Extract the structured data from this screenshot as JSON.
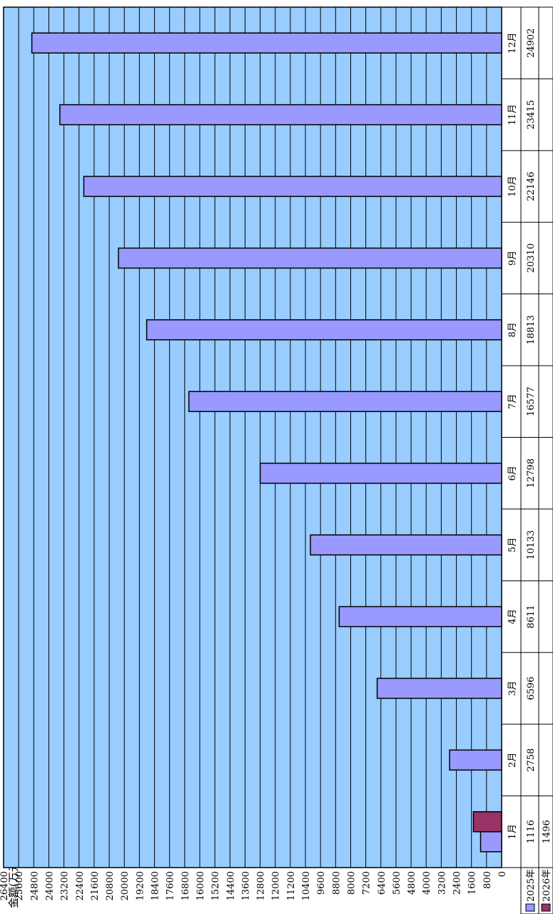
{
  "chart_data": {
    "type": "bar",
    "orientation": "horizontal",
    "ylabel": "金额(万元)",
    "ylim": [
      0,
      26400
    ],
    "ytick_step": 800,
    "ticks": [
      0,
      800,
      1600,
      2400,
      3200,
      4000,
      4800,
      5600,
      6400,
      7200,
      8000,
      8800,
      9600,
      10400,
      11200,
      12000,
      12800,
      13600,
      14400,
      15200,
      16000,
      16800,
      17600,
      18400,
      19200,
      20000,
      20800,
      21600,
      22400,
      23200,
      24000,
      24800,
      25600,
      26400
    ],
    "categories": [
      "1月",
      "2月",
      "3月",
      "4月",
      "5月",
      "6月",
      "7月",
      "8月",
      "9月",
      "10月",
      "11月",
      "12月"
    ],
    "series": [
      {
        "name": "2025年",
        "color": "#9999ff",
        "values": [
          1116,
          2758,
          6596,
          8611,
          10133,
          12798,
          16577,
          18813,
          20310,
          22146,
          23415,
          24902
        ]
      },
      {
        "name": "2026年",
        "color": "#993366",
        "values": [
          1496,
          null,
          null,
          null,
          null,
          null,
          null,
          null,
          null,
          null,
          null,
          null
        ]
      }
    ],
    "data_table": true,
    "grid": true,
    "plot_background": "#99ccff"
  }
}
